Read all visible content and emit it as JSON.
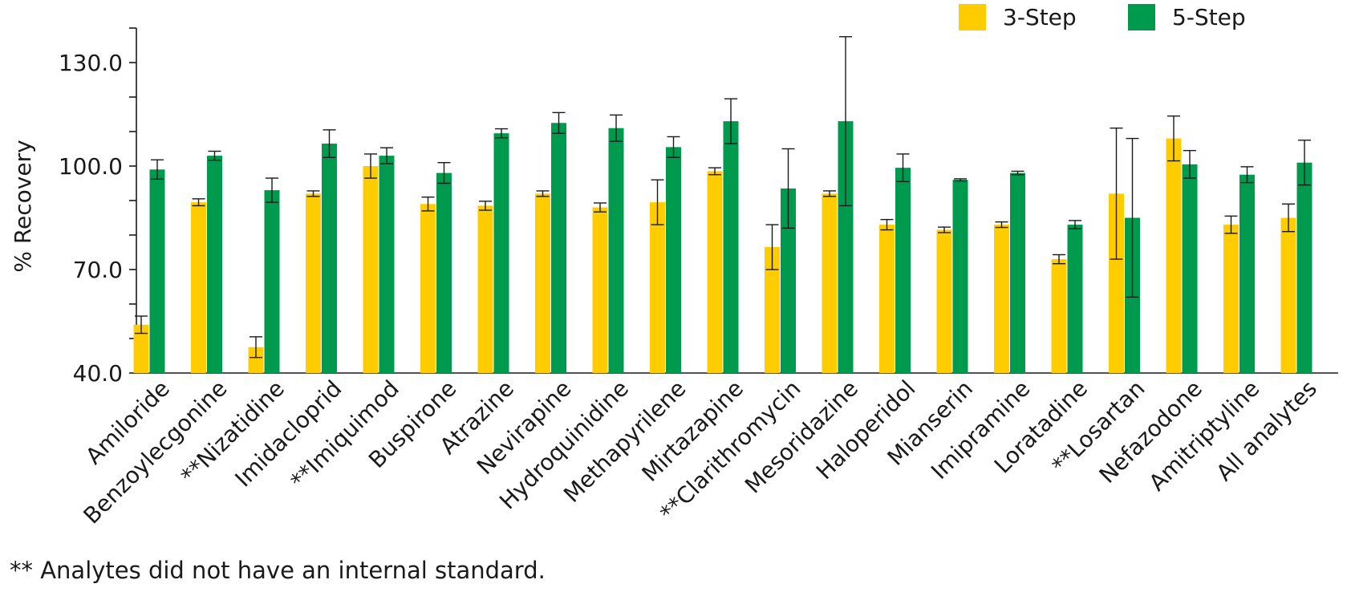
{
  "chart_data": {
    "type": "bar",
    "title": "",
    "xlabel": "",
    "ylabel": "% Recovery",
    "ylim": [
      40,
      140
    ],
    "yticks": [
      "40.0",
      "70.0",
      "100.0",
      "130.0"
    ],
    "grid": false,
    "legend_position": "top-right",
    "categories": [
      "Amiloride",
      "Benzoylecgonine",
      "**Nizatidine",
      "Imidacloprid",
      "**Imiquimod",
      "Buspirone",
      "Atrazine",
      "Nevirapine",
      "Hydroquinidine",
      "Methapyrilene",
      "Mirtazapine",
      "**Clarithromycin",
      "Mesoridazine",
      "Haloperidol",
      "Mianserin",
      "Imipramine",
      "Loratadine",
      "**Losartan",
      "Nefazodone",
      "Amitriptyline",
      "All analytes"
    ],
    "series": [
      {
        "name": "3-Step",
        "color": "#FFCC00",
        "values": [
          54,
          89.5,
          47.5,
          92,
          100,
          89,
          88.5,
          92,
          88,
          89.5,
          98.5,
          76.5,
          92,
          83,
          81.5,
          83,
          73,
          92,
          108,
          83,
          85
        ],
        "errors": [
          2.5,
          1,
          3,
          0.8,
          3.5,
          2,
          1.3,
          0.8,
          1.3,
          6.5,
          1,
          6.5,
          0.8,
          1.5,
          0.8,
          0.8,
          1.3,
          19,
          6.5,
          2.5,
          4
        ]
      },
      {
        "name": "5-Step",
        "color": "#009A4E",
        "values": [
          99,
          103,
          93,
          106.5,
          103,
          98,
          109.5,
          112.5,
          111,
          105.5,
          113,
          93.5,
          113,
          99.5,
          96,
          98,
          83,
          85,
          100.5,
          97.5,
          101
        ],
        "errors": [
          2.8,
          1.3,
          3.5,
          4,
          2.3,
          3,
          1.3,
          3,
          3.8,
          3,
          6.5,
          11.5,
          24.5,
          4,
          0.3,
          0.5,
          1.2,
          23,
          4,
          2.3,
          6.5
        ]
      }
    ]
  },
  "footnote": "** Analytes did not have an internal standard."
}
